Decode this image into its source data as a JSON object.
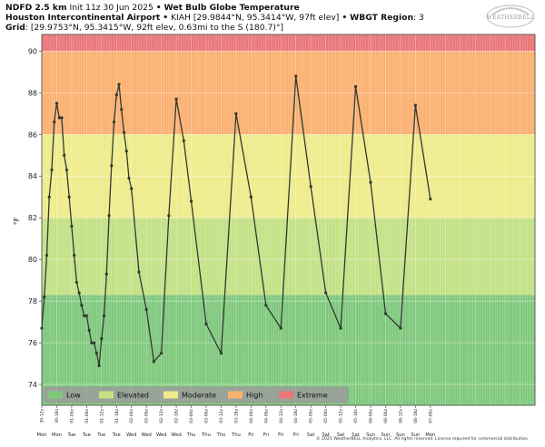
{
  "header": {
    "line1": {
      "model": "NDFD 2.5 km",
      "init": "Init 11z 30 Jun 2025",
      "sep": "•",
      "product": "Wet Bulb Globe Temperature"
    },
    "line2": {
      "station": "Houston Intercontinental Airport",
      "sep": "•",
      "details": "KIAH [29.9844°N, 95.3414°W, 97ft elev]",
      "sep2": "•",
      "region_label": "WBGT Region",
      "region_value": ": 3"
    },
    "line3": {
      "label": "Grid",
      "details": ": [29.9753°N, 95.3415°W, 92ft elev, 0.63mi to the S (180.7)°]"
    }
  },
  "logo": {
    "text": "WEATHERBELL"
  },
  "footer": "© 2025 WeatherBELL Analytics, LLC. All rights reserved. License required for commercial distribution.",
  "chart_data": {
    "type": "line",
    "title": "Wet Bulb Globe Temperature",
    "ylabel": "°F",
    "ylim": [
      73,
      90.8
    ],
    "yticks": [
      74,
      76,
      78,
      80,
      82,
      84,
      86,
      88,
      90
    ],
    "categories": [
      {
        "label": "Low",
        "range": [
          73,
          78.3
        ],
        "color": "#7fc87d"
      },
      {
        "label": "Elevated",
        "range": [
          78.3,
          82
        ],
        "color": "#c3e185"
      },
      {
        "label": "Moderate",
        "range": [
          82,
          86
        ],
        "color": "#eeec8a"
      },
      {
        "label": "High",
        "range": [
          86,
          90
        ],
        "color": "#fbb070"
      },
      {
        "label": "Extreme",
        "range": [
          90,
          90.8
        ],
        "color": "#ea767a"
      }
    ],
    "xlim": [
      0,
      198
    ],
    "xticks": [
      {
        "x": 0,
        "time": "30-12z",
        "day": "Mon"
      },
      {
        "x": 6,
        "time": "30-18z",
        "day": "Mon"
      },
      {
        "x": 12,
        "time": "01-00z",
        "day": "Tue"
      },
      {
        "x": 18,
        "time": "01-06z",
        "day": "Tue"
      },
      {
        "x": 24,
        "time": "01-12z",
        "day": "Tue"
      },
      {
        "x": 30,
        "time": "01-18z",
        "day": "Tue"
      },
      {
        "x": 36,
        "time": "02-00z",
        "day": "Wed"
      },
      {
        "x": 42,
        "time": "02-06z",
        "day": "Wed"
      },
      {
        "x": 48,
        "time": "02-12z",
        "day": "Wed"
      },
      {
        "x": 54,
        "time": "02-18z",
        "day": "Wed"
      },
      {
        "x": 60,
        "time": "03-00z",
        "day": "Thu"
      },
      {
        "x": 66,
        "time": "03-06z",
        "day": "Thu"
      },
      {
        "x": 72,
        "time": "03-12z",
        "day": "Thu"
      },
      {
        "x": 78,
        "time": "03-18z",
        "day": "Thu"
      },
      {
        "x": 84,
        "time": "04-00z",
        "day": "Fri"
      },
      {
        "x": 90,
        "time": "04-06z",
        "day": "Fri"
      },
      {
        "x": 96,
        "time": "04-12z",
        "day": "Fri"
      },
      {
        "x": 102,
        "time": "04-18z",
        "day": "Fri"
      },
      {
        "x": 108,
        "time": "05-00z",
        "day": "Sat"
      },
      {
        "x": 114,
        "time": "05-06z",
        "day": "Sat"
      },
      {
        "x": 120,
        "time": "05-12z",
        "day": "Sat"
      },
      {
        "x": 126,
        "time": "05-18z",
        "day": "Sat"
      },
      {
        "x": 132,
        "time": "06-00z",
        "day": "Sun"
      },
      {
        "x": 138,
        "time": "06-06z",
        "day": "Sun"
      },
      {
        "x": 144,
        "time": "06-12z",
        "day": "Sun"
      },
      {
        "x": 150,
        "time": "06-18z",
        "day": "Sun"
      },
      {
        "x": 156,
        "time": "07-00z",
        "day": "Mon"
      }
    ],
    "series": [
      {
        "color": "#2f3a30",
        "points": [
          [
            0,
            76.7
          ],
          [
            1,
            78.2
          ],
          [
            2,
            80.2
          ],
          [
            3,
            83.0
          ],
          [
            4,
            84.3
          ],
          [
            5,
            86.6
          ],
          [
            6,
            87.5
          ],
          [
            7,
            86.8
          ],
          [
            8,
            86.8
          ],
          [
            9,
            85.0
          ],
          [
            10,
            84.3
          ],
          [
            11,
            83.0
          ],
          [
            12,
            81.6
          ],
          [
            13,
            80.2
          ],
          [
            14,
            78.9
          ],
          [
            15,
            78.4
          ],
          [
            16,
            77.8
          ],
          [
            17,
            77.3
          ],
          [
            18,
            77.3
          ],
          [
            19,
            76.6
          ],
          [
            20,
            76.0
          ],
          [
            21,
            76.0
          ],
          [
            22,
            75.5
          ],
          [
            23,
            74.9
          ],
          [
            24,
            76.2
          ],
          [
            25,
            77.3
          ],
          [
            26,
            79.3
          ],
          [
            27,
            82.1
          ],
          [
            28,
            84.5
          ],
          [
            29,
            86.6
          ],
          [
            30,
            87.9
          ],
          [
            31,
            88.4
          ],
          [
            32,
            87.2
          ],
          [
            33,
            86.1
          ],
          [
            34,
            85.2
          ],
          [
            35,
            83.9
          ],
          [
            36,
            83.4
          ],
          [
            39,
            79.4
          ],
          [
            42,
            77.6
          ],
          [
            45,
            75.1
          ],
          [
            48,
            75.5
          ],
          [
            51,
            82.1
          ],
          [
            54,
            87.7
          ],
          [
            57,
            85.7
          ],
          [
            60,
            82.8
          ],
          [
            66,
            76.9
          ],
          [
            72,
            75.5
          ],
          [
            78,
            87.0
          ],
          [
            84,
            83.0
          ],
          [
            90,
            77.8
          ],
          [
            96,
            76.7
          ],
          [
            102,
            88.8
          ],
          [
            108,
            83.5
          ],
          [
            114,
            78.4
          ],
          [
            120,
            76.7
          ],
          [
            126,
            88.3
          ],
          [
            132,
            83.7
          ],
          [
            138,
            77.4
          ],
          [
            144,
            76.7
          ],
          [
            150,
            87.4
          ],
          [
            156,
            82.9
          ]
        ]
      }
    ],
    "legend": {
      "placement": "bottom-left",
      "items": [
        "Low",
        "Elevated",
        "Moderate",
        "High",
        "Extreme"
      ]
    },
    "grid": true
  }
}
